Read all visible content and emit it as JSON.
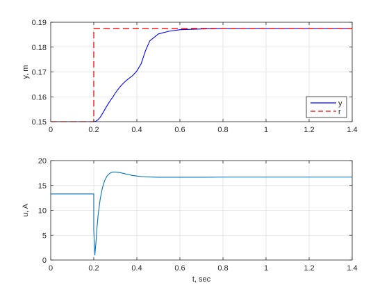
{
  "chart_data": [
    {
      "type": "line",
      "xlabel": "",
      "ylabel": "y, m",
      "xlim": [
        0,
        1.4
      ],
      "ylim": [
        0.15,
        0.19
      ],
      "xticks": [
        "0",
        "0.2",
        "0.4",
        "0.6",
        "0.8",
        "1",
        "1.2",
        "1.4"
      ],
      "xtick_values": [
        0,
        0.2,
        0.4,
        0.6,
        0.8,
        1.0,
        1.2,
        1.4
      ],
      "yticks": [
        "0.15",
        "0.16",
        "0.17",
        "0.18",
        "0.19"
      ],
      "ytick_values": [
        0.15,
        0.16,
        0.17,
        0.18,
        0.19
      ],
      "grid": true,
      "legend_position": "bottom-right",
      "series": [
        {
          "name": "y",
          "color": "#0000ff",
          "style": "solid",
          "x": [
            0,
            0.2,
            0.21,
            0.22,
            0.23,
            0.24,
            0.25,
            0.26,
            0.27,
            0.28,
            0.29,
            0.3,
            0.31,
            0.32,
            0.33,
            0.34,
            0.35,
            0.36,
            0.38,
            0.4,
            0.42,
            0.44,
            0.46,
            0.5,
            0.55,
            0.6,
            0.7,
            0.8,
            0.9,
            1.0,
            1.2,
            1.4
          ],
          "values": [
            0.15,
            0.15,
            0.1502,
            0.1508,
            0.1518,
            0.1532,
            0.1547,
            0.1562,
            0.1576,
            0.1589,
            0.1601,
            0.1615,
            0.1627,
            0.1638,
            0.1648,
            0.1657,
            0.1665,
            0.1672,
            0.1685,
            0.1704,
            0.1733,
            0.1785,
            0.1825,
            0.1853,
            0.1864,
            0.187,
            0.1873,
            0.1875,
            0.1875,
            0.1875,
            0.1875,
            0.1875
          ]
        },
        {
          "name": "r",
          "color": "#ff0000",
          "style": "dashed",
          "x": [
            0,
            0.2,
            0.2,
            1.4
          ],
          "values": [
            0.15,
            0.15,
            0.1875,
            0.1875
          ]
        }
      ]
    },
    {
      "type": "line",
      "xlabel": "t, sec",
      "ylabel": "u, A",
      "xlim": [
        0,
        1.4
      ],
      "ylim": [
        0,
        20
      ],
      "xticks": [
        "0",
        "0.2",
        "0.4",
        "0.6",
        "0.8",
        "1",
        "1.2",
        "1.4"
      ],
      "xtick_values": [
        0,
        0.2,
        0.4,
        0.6,
        0.8,
        1.0,
        1.2,
        1.4
      ],
      "yticks": [
        "0",
        "5",
        "10",
        "15",
        "20"
      ],
      "ytick_values": [
        0,
        5,
        10,
        15,
        20
      ],
      "grid": true,
      "series": [
        {
          "color": "#0072bd",
          "style": "solid",
          "x": [
            0,
            0.2,
            0.2,
            0.205,
            0.21,
            0.215,
            0.22,
            0.23,
            0.24,
            0.25,
            0.26,
            0.27,
            0.28,
            0.29,
            0.3,
            0.32,
            0.34,
            0.36,
            0.38,
            0.4,
            0.42,
            0.44,
            0.46,
            0.5,
            0.55,
            0.6,
            0.7,
            0.8,
            1.0,
            1.2,
            1.4
          ],
          "values": [
            13.3,
            13.3,
            6.0,
            1.0,
            3.5,
            6.5,
            9.0,
            12.3,
            14.5,
            15.9,
            16.8,
            17.3,
            17.6,
            17.7,
            17.7,
            17.6,
            17.4,
            17.2,
            17.0,
            16.9,
            16.8,
            16.75,
            16.7,
            16.65,
            16.65,
            16.65,
            16.65,
            16.68,
            16.68,
            16.68,
            16.68
          ]
        }
      ]
    }
  ]
}
